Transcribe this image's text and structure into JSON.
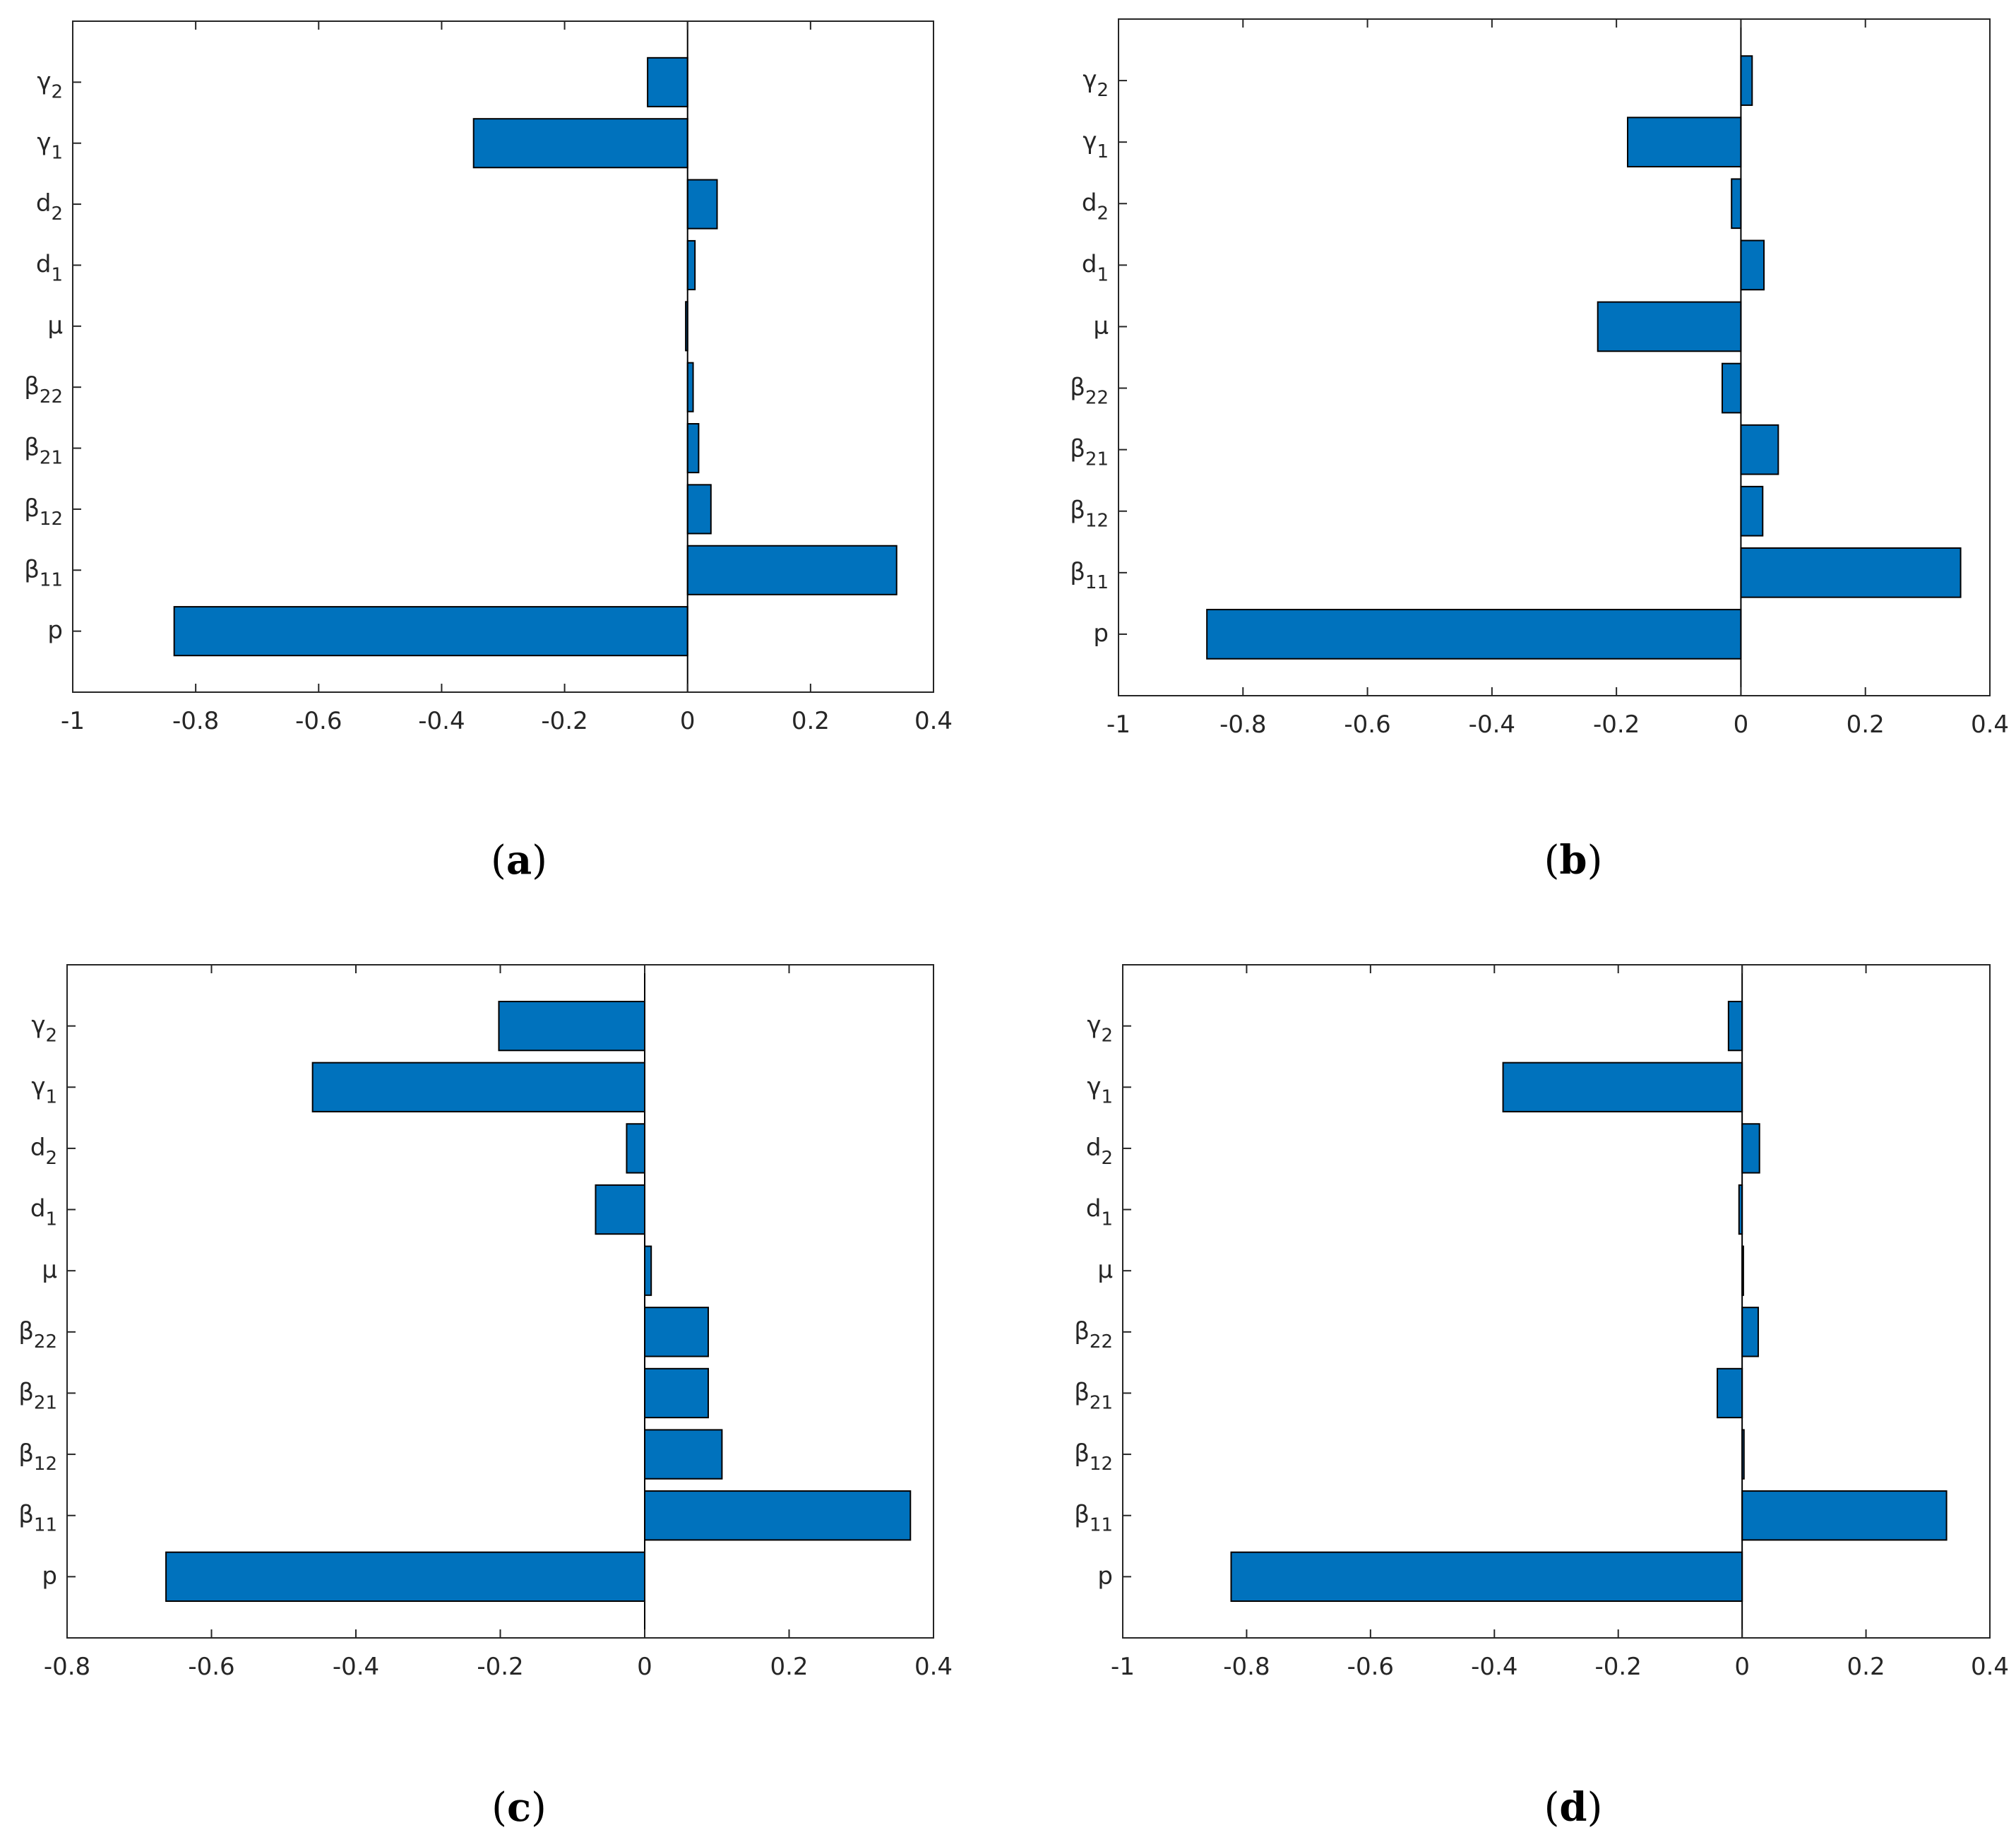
{
  "colors": {
    "bar_fill": "#0072bd",
    "bar_stroke": "#000000",
    "axis": "#262626",
    "background": "#ffffff"
  },
  "chart_data": [
    {
      "type": "bar",
      "orientation": "horizontal",
      "panel": "a",
      "title": "",
      "categories": [
        {
          "base": "p",
          "sub": ""
        },
        {
          "base": "β",
          "sub": "11"
        },
        {
          "base": "β",
          "sub": "12"
        },
        {
          "base": "β",
          "sub": "21"
        },
        {
          "base": "β",
          "sub": "22"
        },
        {
          "base": "μ",
          "sub": ""
        },
        {
          "base": "d",
          "sub": "1"
        },
        {
          "base": "d",
          "sub": "2"
        },
        {
          "base": "γ",
          "sub": "1"
        },
        {
          "base": "γ",
          "sub": "2"
        }
      ],
      "values": [
        -0.835,
        0.34,
        0.038,
        0.018,
        0.009,
        -0.003,
        0.012,
        0.048,
        -0.348,
        -0.065
      ],
      "xlim": [
        -1,
        0.4
      ],
      "xticks": [
        -1,
        -0.8,
        -0.6,
        -0.4,
        -0.2,
        0,
        0.2,
        0.4
      ],
      "xtick_labels": [
        "-1",
        "-0.8",
        "-0.6",
        "-0.4",
        "-0.2",
        "0",
        "0.2",
        "0.4"
      ],
      "xlabel": "",
      "ylabel": ""
    },
    {
      "type": "bar",
      "orientation": "horizontal",
      "panel": "b",
      "title": "",
      "categories": [
        {
          "base": "p",
          "sub": ""
        },
        {
          "base": "β",
          "sub": "11"
        },
        {
          "base": "β",
          "sub": "12"
        },
        {
          "base": "β",
          "sub": "21"
        },
        {
          "base": "β",
          "sub": "22"
        },
        {
          "base": "μ",
          "sub": ""
        },
        {
          "base": "d",
          "sub": "1"
        },
        {
          "base": "d",
          "sub": "2"
        },
        {
          "base": "γ",
          "sub": "1"
        },
        {
          "base": "γ",
          "sub": "2"
        }
      ],
      "values": [
        -0.858,
        0.353,
        0.035,
        0.06,
        -0.03,
        -0.23,
        0.037,
        -0.015,
        -0.182,
        0.018
      ],
      "xlim": [
        -1,
        0.4
      ],
      "xticks": [
        -1,
        -0.8,
        -0.6,
        -0.4,
        -0.2,
        0,
        0.2,
        0.4
      ],
      "xtick_labels": [
        "-1",
        "-0.8",
        "-0.6",
        "-0.4",
        "-0.2",
        "0",
        "0.2",
        "0.4"
      ],
      "xlabel": "",
      "ylabel": ""
    },
    {
      "type": "bar",
      "orientation": "horizontal",
      "panel": "c",
      "title": "",
      "categories": [
        {
          "base": "p",
          "sub": ""
        },
        {
          "base": "β",
          "sub": "11"
        },
        {
          "base": "β",
          "sub": "12"
        },
        {
          "base": "β",
          "sub": "21"
        },
        {
          "base": "β",
          "sub": "22"
        },
        {
          "base": "μ",
          "sub": ""
        },
        {
          "base": "d",
          "sub": "1"
        },
        {
          "base": "d",
          "sub": "2"
        },
        {
          "base": "γ",
          "sub": "1"
        },
        {
          "base": "γ",
          "sub": "2"
        }
      ],
      "values": [
        -0.663,
        0.368,
        0.107,
        0.088,
        0.088,
        0.009,
        -0.068,
        -0.025,
        -0.46,
        -0.202
      ],
      "xlim": [
        -0.8,
        0.4
      ],
      "xticks": [
        -0.8,
        -0.6,
        -0.4,
        -0.2,
        0,
        0.2,
        0.4
      ],
      "xtick_labels": [
        "-0.8",
        "-0.6",
        "-0.4",
        "-0.2",
        "0",
        "0.2",
        "0.4"
      ],
      "xlabel": "",
      "ylabel": ""
    },
    {
      "type": "bar",
      "orientation": "horizontal",
      "panel": "d",
      "title": "",
      "categories": [
        {
          "base": "p",
          "sub": ""
        },
        {
          "base": "β",
          "sub": "11"
        },
        {
          "base": "β",
          "sub": "12"
        },
        {
          "base": "β",
          "sub": "21"
        },
        {
          "base": "β",
          "sub": "22"
        },
        {
          "base": "μ",
          "sub": ""
        },
        {
          "base": "d",
          "sub": "1"
        },
        {
          "base": "d",
          "sub": "2"
        },
        {
          "base": "γ",
          "sub": "1"
        },
        {
          "base": "γ",
          "sub": "2"
        }
      ],
      "values": [
        -0.825,
        0.33,
        0.003,
        -0.04,
        0.026,
        0.002,
        -0.005,
        0.028,
        -0.386,
        -0.022
      ],
      "xlim": [
        -1,
        0.4
      ],
      "xticks": [
        -1,
        -0.8,
        -0.6,
        -0.4,
        -0.2,
        0,
        0.2,
        0.4
      ],
      "xtick_labels": [
        "-1",
        "-0.8",
        "-0.6",
        "-0.4",
        "-0.2",
        "0",
        "0.2",
        "0.4"
      ],
      "xlabel": "",
      "ylabel": ""
    }
  ],
  "panel_labels": [
    {
      "open": "(",
      "letter": "a",
      "close": ")"
    },
    {
      "open": "(",
      "letter": "b",
      "close": ")"
    },
    {
      "open": "(",
      "letter": "c",
      "close": ")"
    },
    {
      "open": "(",
      "letter": "d",
      "close": ")"
    }
  ]
}
